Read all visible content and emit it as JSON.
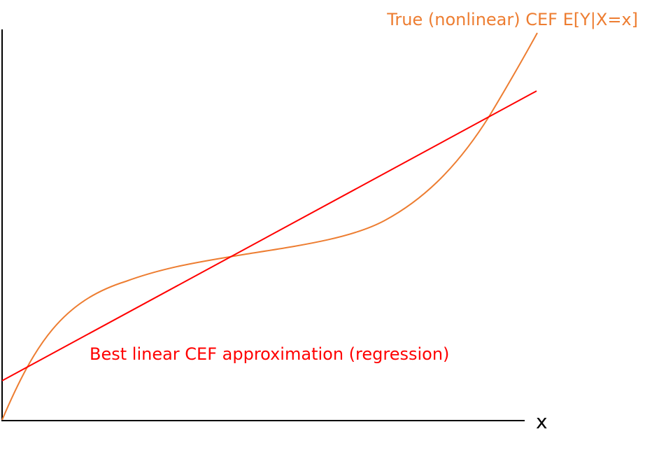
{
  "diagram": {
    "curve_label": "True (nonlinear) CEF E[Y|X=x]",
    "line_label": "Best linear CEF approximation (regression)",
    "x_axis_label": "x"
  },
  "colors": {
    "curve": "#ED7D31",
    "line": "#FF0000",
    "axis": "#000000",
    "background": "#FFFFFF"
  }
}
